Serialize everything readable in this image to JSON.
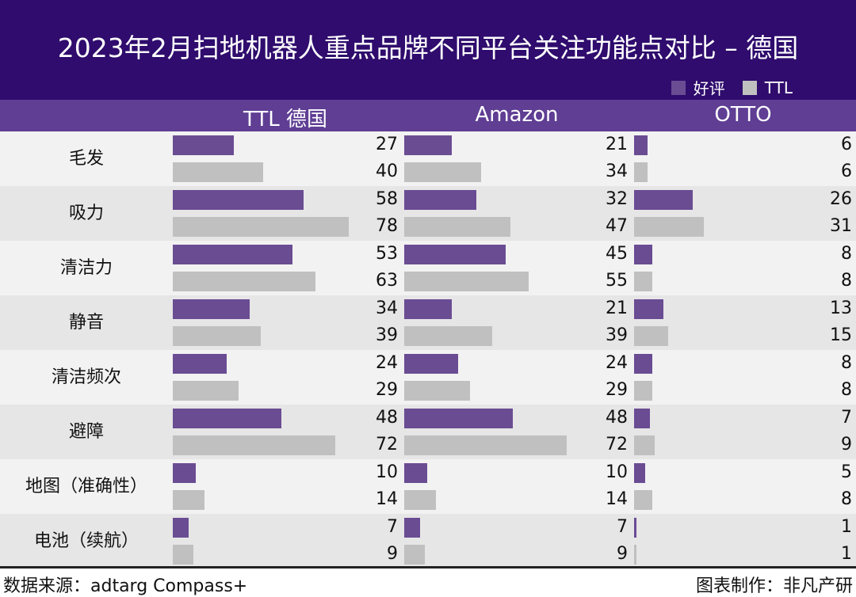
{
  "chart_data": {
    "type": "bar",
    "orientation": "horizontal",
    "title": "2023年2月扫地机器人重点品牌不同平台关注功能点对比 – 德国",
    "legend": [
      {
        "name": "好评",
        "color": "#6a4c93"
      },
      {
        "name": "TTL",
        "color": "#c0c0c0"
      }
    ],
    "legend_position": "top-right",
    "categories": [
      "毛发",
      "吸力",
      "清洁力",
      "静音",
      "清洁频次",
      "避障",
      "地图（准确性）",
      "电池（续航）"
    ],
    "panels": [
      {
        "title": "TTL 德国",
        "series": [
          {
            "name": "好评",
            "values": [
              27,
              58,
              53,
              34,
              24,
              48,
              10,
              7
            ]
          },
          {
            "name": "TTL",
            "values": [
              40,
              78,
              63,
              39,
              29,
              72,
              14,
              9
            ]
          }
        ]
      },
      {
        "title": "Amazon",
        "series": [
          {
            "name": "好评",
            "values": [
              21,
              32,
              45,
              21,
              24,
              48,
              10,
              7
            ]
          },
          {
            "name": "TTL",
            "values": [
              34,
              47,
              55,
              39,
              29,
              72,
              14,
              9
            ]
          }
        ]
      },
      {
        "title": "OTTO",
        "series": [
          {
            "name": "好评",
            "values": [
              6,
              26,
              8,
              13,
              8,
              7,
              5,
              1
            ]
          },
          {
            "name": "TTL",
            "values": [
              6,
              31,
              8,
              15,
              8,
              9,
              8,
              1
            ]
          }
        ]
      }
    ]
  },
  "footer": {
    "source": "数据来源：adtarg Compass+",
    "maker": "图表制作：非凡产研"
  },
  "colors": {
    "title_bg": "#2f0c6d",
    "header_bg": "#5f3e94",
    "row_light": "#f2f2f2",
    "row_dark": "#e6e6e6"
  }
}
